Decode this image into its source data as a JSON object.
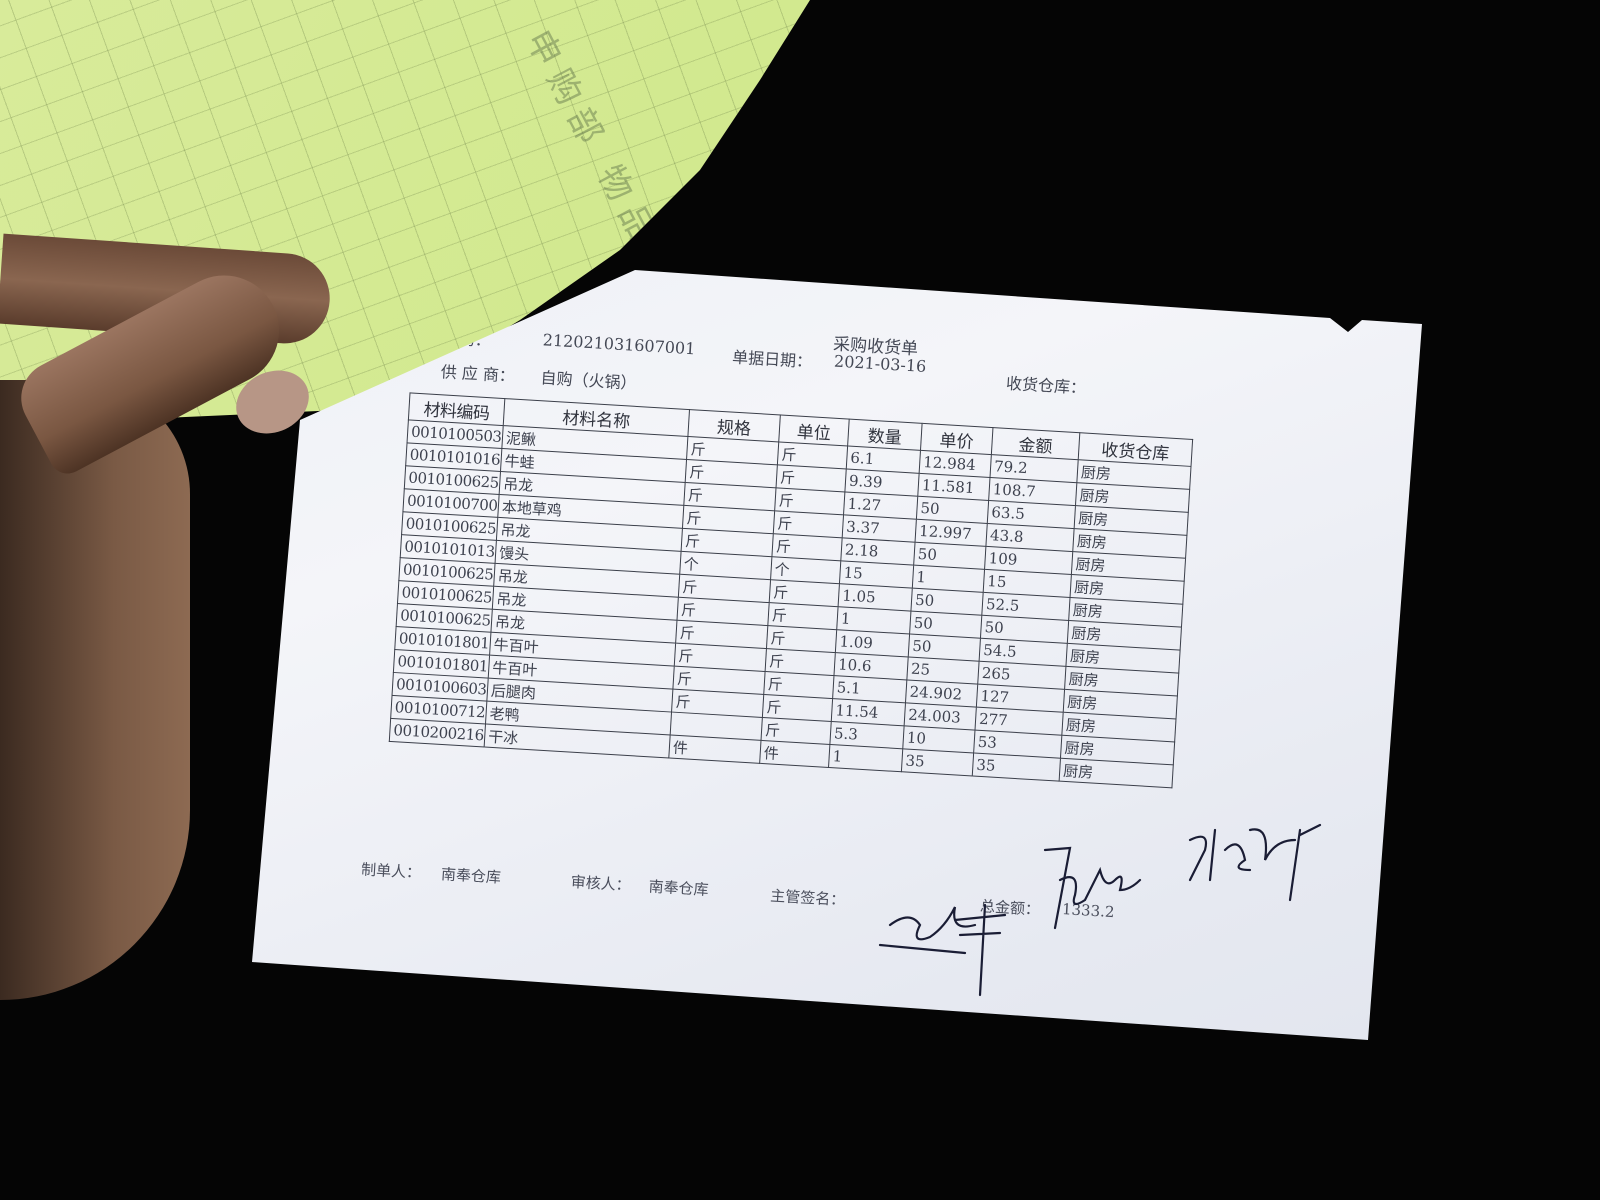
{
  "document": {
    "title": "采购收货单",
    "doc_no_label": "编码：",
    "doc_no": "212021031607001",
    "date_label": "单据日期：",
    "date": "2021-03-16",
    "supplier_label": "供 应 商：",
    "supplier": "自购（火锅）",
    "warehouse_label": "收货仓库：",
    "columns": [
      "材料编码",
      "材料名称",
      "规格",
      "单位",
      "数量",
      "单价",
      "金额",
      "收货仓库"
    ],
    "rows": [
      [
        "0010100503",
        "泥鳅",
        "斤",
        "斤",
        "6.1",
        "12.984",
        "79.2",
        "厨房"
      ],
      [
        "0010101016",
        "牛蛙",
        "斤",
        "斤",
        "9.39",
        "11.581",
        "108.7",
        "厨房"
      ],
      [
        "0010100625",
        "吊龙",
        "斤",
        "斤",
        "1.27",
        "50",
        "63.5",
        "厨房"
      ],
      [
        "0010100700",
        "本地草鸡",
        "斤",
        "斤",
        "3.37",
        "12.997",
        "43.8",
        "厨房"
      ],
      [
        "0010100625",
        "吊龙",
        "斤",
        "斤",
        "2.18",
        "50",
        "109",
        "厨房"
      ],
      [
        "0010101013",
        "馒头",
        "个",
        "个",
        "15",
        "1",
        "15",
        "厨房"
      ],
      [
        "0010100625",
        "吊龙",
        "斤",
        "斤",
        "1.05",
        "50",
        "52.5",
        "厨房"
      ],
      [
        "0010100625",
        "吊龙",
        "斤",
        "斤",
        "1",
        "50",
        "50",
        "厨房"
      ],
      [
        "0010100625",
        "吊龙",
        "斤",
        "斤",
        "1.09",
        "50",
        "54.5",
        "厨房"
      ],
      [
        "0010101801",
        "牛百叶",
        "斤",
        "斤",
        "10.6",
        "25",
        "265",
        "厨房"
      ],
      [
        "0010101801",
        "牛百叶",
        "斤",
        "斤",
        "5.1",
        "24.902",
        "127",
        "厨房"
      ],
      [
        "0010100603",
        "后腿肉",
        "斤",
        "斤",
        "11.54",
        "24.003",
        "277",
        "厨房"
      ],
      [
        "0010100712",
        "老鸭",
        "",
        "斤",
        "5.3",
        "10",
        "53",
        "厨房"
      ],
      [
        "0010200216",
        "干冰",
        "件",
        "件",
        "1",
        "35",
        "35",
        "厨房"
      ]
    ],
    "maker_label": "制单人：",
    "maker": "南奉仓库",
    "reviewer_label": "审核人：",
    "reviewer": "南奉仓库",
    "supervisor_label": "主管签名：",
    "total_label": "总金额：",
    "total": "1333.2"
  },
  "carbon_copy": {
    "faint_text": "申购部 物品"
  },
  "colors": {
    "background": "#050505",
    "paper": "#eef0f5",
    "carbon_copy": "#d2e88c",
    "ink": "#3a3d48",
    "signature": "#1a1d35"
  }
}
